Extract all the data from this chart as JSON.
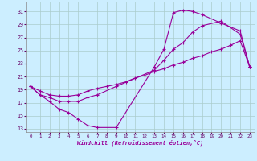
{
  "title": "",
  "xlabel": "Windchill (Refroidissement éolien,°C)",
  "bg_color": "#cceeff",
  "line_color": "#990099",
  "grid_color": "#aacccc",
  "xlim": [
    -0.5,
    23.5
  ],
  "ylim": [
    12.5,
    32.5
  ],
  "xticks": [
    0,
    1,
    2,
    3,
    4,
    5,
    6,
    7,
    8,
    9,
    10,
    11,
    12,
    13,
    14,
    15,
    16,
    17,
    18,
    19,
    20,
    21,
    22,
    23
  ],
  "yticks": [
    13,
    15,
    17,
    19,
    21,
    23,
    25,
    27,
    29,
    31
  ],
  "line1_x": [
    0,
    1,
    2,
    3,
    4,
    5,
    6,
    7,
    9,
    13,
    14,
    15,
    16,
    17,
    18,
    20,
    22,
    23
  ],
  "line1_y": [
    19.5,
    18.2,
    17.2,
    16.0,
    15.5,
    14.5,
    13.5,
    13.2,
    13.2,
    22.5,
    25.2,
    30.8,
    31.2,
    31.0,
    30.5,
    29.2,
    28.0,
    22.5
  ],
  "line2_x": [
    0,
    1,
    2,
    3,
    4,
    5,
    6,
    7,
    9,
    13,
    14,
    15,
    16,
    17,
    18,
    20,
    22,
    23
  ],
  "line2_y": [
    19.5,
    18.2,
    17.8,
    17.2,
    17.2,
    17.2,
    17.8,
    18.2,
    19.5,
    22.0,
    23.5,
    25.2,
    26.2,
    27.8,
    28.8,
    29.5,
    27.5,
    22.5
  ],
  "line3_x": [
    0,
    1,
    2,
    3,
    4,
    5,
    6,
    7,
    8,
    9,
    10,
    11,
    12,
    13,
    14,
    15,
    16,
    17,
    18,
    19,
    20,
    21,
    22,
    23
  ],
  "line3_y": [
    19.5,
    18.8,
    18.2,
    18.0,
    18.0,
    18.2,
    18.8,
    19.2,
    19.5,
    19.8,
    20.2,
    20.8,
    21.2,
    21.8,
    22.2,
    22.8,
    23.2,
    23.8,
    24.2,
    24.8,
    25.2,
    25.8,
    26.5,
    22.5
  ]
}
